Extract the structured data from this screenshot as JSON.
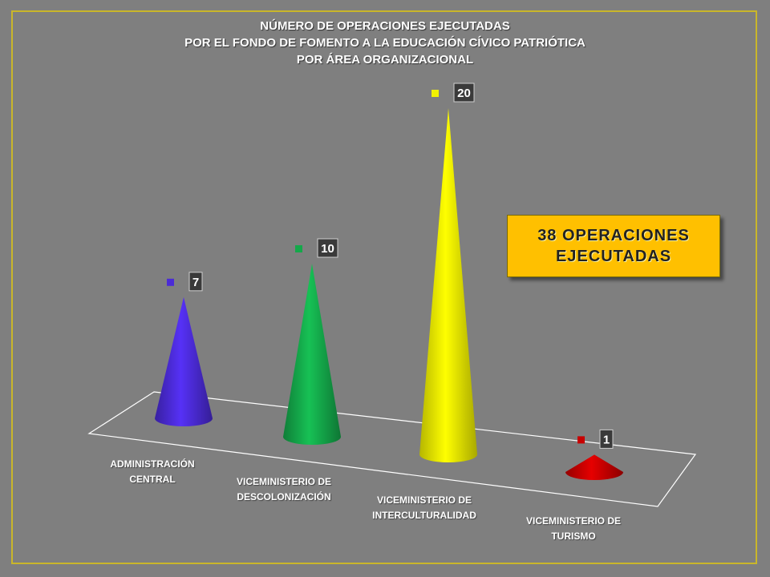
{
  "title_lines": [
    "NÚMERO DE OPERACIONES EJECUTADAS",
    "POR EL FONDO DE FOMENTO A LA EDUCACIÓN CÍVICO PATRIÓTICA",
    "POR ÁREA ORGANIZACIONAL"
  ],
  "callout": {
    "line1": "38 OPERACIONES",
    "line2": "EJECUTADAS"
  },
  "categories": [
    {
      "line1": "ADMINISTRACIÓN",
      "line2": "CENTRAL"
    },
    {
      "line1": "VICEMINISTERIO DE",
      "line2": "DESCOLONIZACIÓN"
    },
    {
      "line1": "VICEMINISTERIO DE",
      "line2": "INTERCULTURALIDAD"
    },
    {
      "line1": "VICEMINISTERIO DE",
      "line2": "TURISMO"
    }
  ],
  "chart_data": {
    "type": "bar",
    "style": "3d-cone",
    "title": "NÚMERO DE OPERACIONES EJECUTADAS POR EL FONDO DE FOMENTO A LA EDUCACIÓN CÍVICO PATRIÓTICA POR ÁREA ORGANIZACIONAL",
    "categories": [
      "ADMINISTRACIÓN CENTRAL",
      "VICEMINISTERIO DE DESCOLONIZACIÓN",
      "VICEMINISTERIO DE INTERCULTURALIDAD",
      "VICEMINISTERIO DE TURISMO"
    ],
    "values": [
      7,
      10,
      20,
      1
    ],
    "colors": [
      "#4b2bd6",
      "#14a84a",
      "#f2f200",
      "#c80000"
    ],
    "data_labels": [
      "7",
      "10",
      "20",
      "1"
    ],
    "total_annotation": "38 OPERACIONES EJECUTADAS",
    "grid": false,
    "legend": "none",
    "ylim": [
      0,
      20
    ]
  }
}
